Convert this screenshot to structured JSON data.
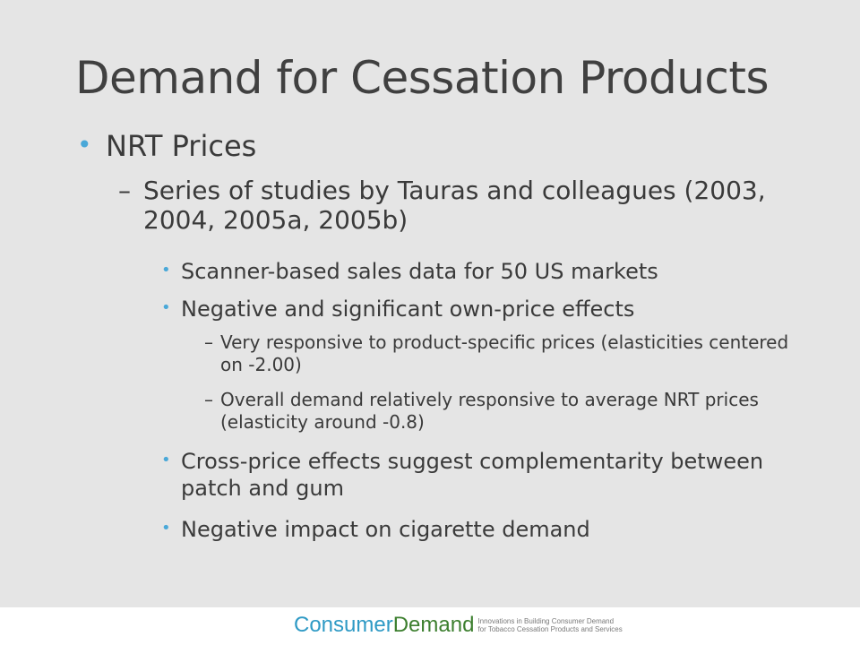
{
  "slide": {
    "title": "Demand for Cessation Products",
    "bullet_l1": "NRT Prices",
    "bullet_l2": "Series of studies by Tauras and colleagues (2003, 2004, 2005a, 2005b)",
    "bullets_l3": [
      "Scanner-based sales data for 50 US markets",
      "Negative and significant own-price effects",
      "Cross-price effects suggest complementarity between patch and gum",
      "Negative impact on cigarette demand"
    ],
    "bullets_l4": [
      "Very responsive to product-specific prices (elasticities centered on -2.00)",
      "Overall demand relatively responsive to average NRT prices (elasticity around -0.8)"
    ]
  },
  "markers": {
    "bullet": "•",
    "dash": "–"
  },
  "footer": {
    "logo_part1": "Consumer",
    "logo_part2": "Demand",
    "tagline_line1": "Innovations in Building Consumer Demand",
    "tagline_line2": "for Tobacco Cessation Products and Services"
  },
  "colors": {
    "background": "#e5e5e5",
    "title_text": "#404040",
    "body_text": "#3a3a3a",
    "bullet_accent": "#4aa8d8",
    "logo_consumer": "#2f9ac5",
    "logo_demand": "#3d7f2f"
  }
}
